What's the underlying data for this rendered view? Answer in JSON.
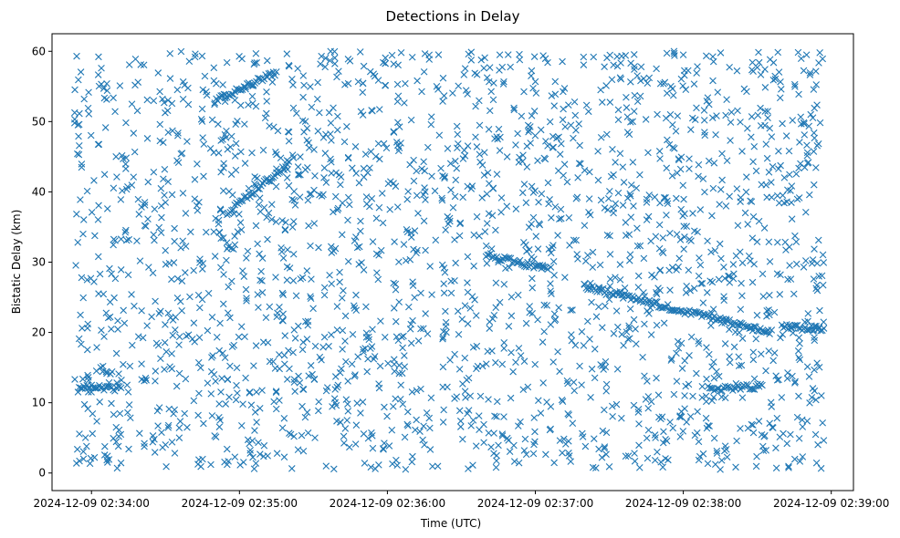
{
  "chart_data": {
    "type": "scatter",
    "title": "Detections in Delay",
    "xlabel": "Time (UTC)",
    "ylabel": "Bistatic Delay (km)",
    "xlim": [
      "2024-12-09 02:33:44",
      "2024-12-09 02:39:09"
    ],
    "ylim": [
      -2.5,
      62.5
    ],
    "x_ticks": [
      "2024-12-09 02:34:00",
      "2024-12-09 02:35:00",
      "2024-12-09 02:36:00",
      "2024-12-09 02:37:00",
      "2024-12-09 02:38:00",
      "2024-12-09 02:39:00"
    ],
    "y_ticks": [
      0,
      10,
      20,
      30,
      40,
      50,
      60
    ],
    "marker": "x",
    "color": "#1f77b4",
    "grid": false,
    "legend": "none",
    "x_span": [
      "2024-12-09 02:33:53",
      "2024-12-09 02:38:57"
    ],
    "series": [
      {
        "name": "",
        "approx_point_count": 2200,
        "points": [
          {
            "t": "2024-12-09 02:33:54",
            "y": 59.3
          },
          {
            "t": "2024-12-09 02:33:55",
            "y": 49.6
          },
          {
            "t": "2024-12-09 02:33:56",
            "y": 43.5
          },
          {
            "t": "2024-12-09 02:33:56",
            "y": 27.8
          },
          {
            "t": "2024-12-09 02:33:55",
            "y": 19.1
          },
          {
            "t": "2024-12-09 02:33:58",
            "y": 3.8
          },
          {
            "t": "2024-12-09 02:34:04",
            "y": 57.6
          },
          {
            "t": "2024-12-09 02:34:10",
            "y": 6.5
          },
          {
            "t": "2024-12-09 02:34:20",
            "y": 58.1
          },
          {
            "t": "2024-12-09 02:34:30",
            "y": 38.5
          },
          {
            "t": "2024-12-09 02:34:42",
            "y": 59.2
          },
          {
            "t": "2024-12-09 02:34:55",
            "y": 1.2
          },
          {
            "t": "2024-12-09 02:35:06",
            "y": 0.6
          },
          {
            "t": "2024-12-09 02:35:20",
            "y": 58.0
          },
          {
            "t": "2024-12-09 02:35:40",
            "y": 12.5
          },
          {
            "t": "2024-12-09 02:36:04",
            "y": 1.1
          },
          {
            "t": "2024-12-09 02:36:20",
            "y": 55.0
          },
          {
            "t": "2024-12-09 02:36:45",
            "y": 30.0
          },
          {
            "t": "2024-12-09 02:37:05",
            "y": 58.4
          },
          {
            "t": "2024-12-09 02:37:30",
            "y": 0.9
          },
          {
            "t": "2024-12-09 02:38:00",
            "y": 59.5
          },
          {
            "t": "2024-12-09 02:38:15",
            "y": 0.5
          },
          {
            "t": "2024-12-09 02:38:30",
            "y": 57.7
          },
          {
            "t": "2024-12-09 02:38:50",
            "y": 59.5
          },
          {
            "t": "2024-12-09 02:38:53",
            "y": 41.0
          },
          {
            "t": "2024-12-09 02:38:55",
            "y": 28.0
          },
          {
            "t": "2024-12-09 02:38:55",
            "y": 20.6
          },
          {
            "t": "2024-12-09 02:38:56",
            "y": 11.0
          }
        ]
      }
    ],
    "tracks": [
      {
        "t": [
          "2024-12-09 02:33:55",
          "2024-12-09 02:34:12"
        ],
        "y": [
          12.3,
          12.0
        ]
      },
      {
        "t": [
          "2024-12-09 02:36:40",
          "2024-12-09 02:37:05"
        ],
        "y": [
          31.0,
          29.0
        ]
      },
      {
        "t": [
          "2024-12-09 02:37:20",
          "2024-12-09 02:38:35"
        ],
        "y": [
          26.5,
          20.0
        ]
      },
      {
        "t": [
          "2024-12-09 02:38:10",
          "2024-12-09 02:38:32"
        ],
        "y": [
          12.0,
          12.3
        ]
      },
      {
        "t": [
          "2024-12-09 02:38:40",
          "2024-12-09 02:38:57"
        ],
        "y": [
          20.8,
          20.5
        ]
      },
      {
        "t": [
          "2024-12-09 02:34:55",
          "2024-12-09 02:35:20"
        ],
        "y": [
          37.0,
          44.0
        ]
      },
      {
        "t": [
          "2024-12-09 02:34:50",
          "2024-12-09 02:35:15"
        ],
        "y": [
          53.0,
          57.0
        ]
      }
    ]
  }
}
